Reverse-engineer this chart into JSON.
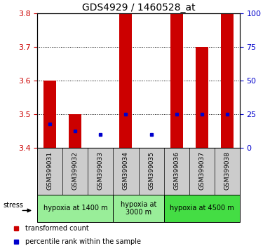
{
  "title": "GDS4929 / 1460528_at",
  "samples": [
    "GSM399031",
    "GSM399032",
    "GSM399033",
    "GSM399034",
    "GSM399035",
    "GSM399036",
    "GSM399037",
    "GSM399038"
  ],
  "bar_bottom": [
    3.4,
    3.4,
    3.4,
    3.4,
    3.4,
    3.4,
    3.4,
    3.4
  ],
  "bar_top": [
    3.6,
    3.5,
    3.4,
    3.8,
    3.4,
    3.8,
    3.7,
    3.8
  ],
  "dot_y": [
    3.47,
    3.45,
    3.44,
    3.5,
    3.44,
    3.5,
    3.5,
    3.5
  ],
  "ylim": [
    3.4,
    3.8
  ],
  "yticks_left": [
    3.4,
    3.5,
    3.6,
    3.7,
    3.8
  ],
  "yticks_right": [
    0,
    25,
    50,
    75,
    100
  ],
  "bar_color": "#cc0000",
  "dot_color": "#0000cc",
  "bar_width": 0.5,
  "groups": [
    {
      "label": "hypoxia at 1400 m",
      "start": 0,
      "end": 3,
      "color": "#99ee99"
    },
    {
      "label": "hypoxia at\n3000 m",
      "start": 3,
      "end": 5,
      "color": "#99ee99"
    },
    {
      "label": "hypoxia at 4500 m",
      "start": 5,
      "end": 8,
      "color": "#44dd44"
    }
  ],
  "legend_items": [
    {
      "label": "transformed count",
      "color": "#cc0000"
    },
    {
      "label": "percentile rank within the sample",
      "color": "#0000cc"
    }
  ],
  "stress_label": "stress",
  "background_color": "#ffffff",
  "plot_bg": "#ffffff",
  "grid_color": "#000000",
  "tick_color_left": "#cc0000",
  "tick_color_right": "#0000cc",
  "title_fontsize": 10,
  "tick_fontsize": 8,
  "sample_fontsize": 6.5,
  "group_fontsize": 7,
  "legend_fontsize": 7,
  "sample_area_color": "#cccccc"
}
